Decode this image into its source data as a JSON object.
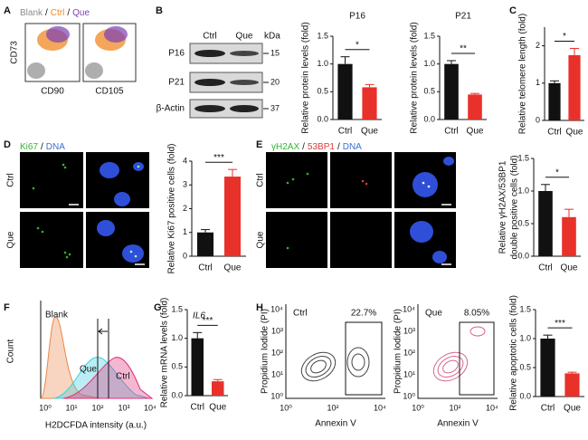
{
  "chart_data": [
    {
      "type": "bar",
      "title": "P16",
      "ylabel": "Relative protein levels (fold)",
      "categories": [
        "Ctrl",
        "Que"
      ],
      "values": [
        1.0,
        0.58
      ],
      "errors": [
        0.13,
        0.05
      ],
      "colors": [
        "#111111",
        "#e8312a"
      ],
      "ylim": [
        0,
        1.5
      ],
      "yticks": [
        {
          "value": 0,
          "label": "0.0"
        },
        {
          "value": 0.5,
          "label": "0.5"
        },
        {
          "value": 1,
          "label": "1.0"
        },
        {
          "value": 1.5,
          "label": "1.5"
        }
      ],
      "significance": "*"
    },
    {
      "type": "bar",
      "title": "P21",
      "ylabel": "Relative protein levels (fold)",
      "categories": [
        "Ctrl",
        "Que"
      ],
      "values": [
        1.0,
        0.45
      ],
      "errors": [
        0.06,
        0.02
      ],
      "colors": [
        "#111111",
        "#e8312a"
      ],
      "ylim": [
        0,
        1.5
      ],
      "yticks": [
        {
          "value": 0,
          "label": "0.0"
        },
        {
          "value": 0.5,
          "label": "0.5"
        },
        {
          "value": 1,
          "label": "1.0"
        },
        {
          "value": 1.5,
          "label": "1.5"
        }
      ],
      "significance": "**"
    },
    {
      "type": "bar",
      "ylabel": "Relative telomere length (fold)",
      "categories": [
        "Ctrl",
        "Que"
      ],
      "values": [
        1.0,
        1.75
      ],
      "errors": [
        0.06,
        0.18
      ],
      "colors": [
        "#111111",
        "#e8312a"
      ],
      "ylim": [
        0,
        2.5
      ],
      "yticks": [
        0,
        1,
        2
      ],
      "significance": "*"
    },
    {
      "type": "bar",
      "ylabel": "Relative Ki67 positive cells (fold)",
      "categories": [
        "Ctrl",
        "Que"
      ],
      "values": [
        1.0,
        3.35
      ],
      "errors": [
        0.12,
        0.3
      ],
      "colors": [
        "#111111",
        "#e8312a"
      ],
      "ylim": [
        0,
        4
      ],
      "yticks": [
        0,
        1,
        2,
        3,
        4
      ],
      "significance": "***"
    },
    {
      "type": "bar",
      "ylabel": [
        "Relative γH2AX/53BP1",
        "double positive cells (fold)"
      ],
      "categories": [
        "Ctrl",
        "Que"
      ],
      "values": [
        1.0,
        0.6
      ],
      "errors": [
        0.1,
        0.12
      ],
      "colors": [
        "#111111",
        "#e8312a"
      ],
      "ylim": [
        0,
        1.5
      ],
      "yticks": [
        {
          "value": 0,
          "label": "0.0"
        },
        {
          "value": 0.5,
          "label": "0.5"
        },
        {
          "value": 1,
          "label": "1.0"
        },
        {
          "value": 1.5,
          "label": "1.5"
        }
      ],
      "significance": "*"
    },
    {
      "type": "bar",
      "title": "IL6",
      "ylabel": "Relative mRNA levels (fold)",
      "categories": [
        "Ctrl",
        "Que"
      ],
      "values": [
        1.0,
        0.25
      ],
      "errors": [
        0.1,
        0.03
      ],
      "colors": [
        "#111111",
        "#e8312a"
      ],
      "ylim": [
        0,
        1.5
      ],
      "yticks": [
        {
          "value": 0,
          "label": "0.0"
        },
        {
          "value": 0.5,
          "label": "0.5"
        },
        {
          "value": 1,
          "label": "1.0"
        },
        {
          "value": 1.5,
          "label": "1.5"
        }
      ],
      "significance": "***"
    },
    {
      "type": "bar",
      "ylabel": "Relative apoptotic cells (fold)",
      "categories": [
        "Ctrl",
        "Que"
      ],
      "values": [
        1.0,
        0.4
      ],
      "errors": [
        0.06,
        0.02
      ],
      "colors": [
        "#111111",
        "#e8312a"
      ],
      "ylim": [
        0,
        1.5
      ],
      "yticks": [
        {
          "value": 0,
          "label": "0.0"
        },
        {
          "value": 0.5,
          "label": "0.5"
        },
        {
          "value": 1,
          "label": "1.0"
        },
        {
          "value": 1.5,
          "label": "1.5"
        }
      ],
      "significance": "***"
    }
  ],
  "panels": {
    "letters": [
      "A",
      "B",
      "C",
      "D",
      "E",
      "F",
      "G",
      "H"
    ],
    "separator": "/",
    "A": {
      "legend": [
        {
          "text": "Blank",
          "color": "#8c8c8c"
        },
        {
          "text": "Ctrl",
          "color": "#f08a24"
        },
        {
          "text": "Que",
          "color": "#7b3fb5"
        }
      ],
      "y_label": "CD73",
      "x_labels": [
        "CD90",
        "CD105"
      ]
    },
    "B": {
      "lanes": [
        "Ctrl",
        "Que"
      ],
      "unit": "kDa",
      "bands": [
        {
          "name": "P16",
          "kda": "15"
        },
        {
          "name": "P21",
          "kda": "20"
        },
        {
          "name": "β-Actin",
          "kda": "37"
        }
      ]
    },
    "D": {
      "stains": [
        {
          "text": "Ki67",
          "color": "#2db82d"
        },
        {
          "text": "DNA",
          "color": "#3a6fd8"
        }
      ],
      "rows": [
        "Ctrl",
        "Que"
      ]
    },
    "E": {
      "stains": [
        {
          "text": "γH2AX",
          "color": "#2db82d"
        },
        {
          "text": "53BP1",
          "color": "#d83a3a"
        },
        {
          "text": "DNA",
          "color": "#3a6fd8"
        }
      ],
      "rows": [
        "Ctrl",
        "Que"
      ]
    },
    "F": {
      "y_label": "Count",
      "x_label": "H2DCFDA intensity (a.u.)",
      "x_ticks": [
        "10⁰",
        "10¹",
        "10²",
        "10³",
        "10⁴"
      ],
      "curves": [
        {
          "name": "Blank",
          "color": "#e8874a"
        },
        {
          "name": "Que",
          "color": "#3ccfe0"
        },
        {
          "name": "Ctrl",
          "color": "#e0307a"
        }
      ]
    },
    "H": {
      "plots": [
        {
          "name": "Ctrl",
          "gate": "22.7%"
        },
        {
          "name": "Que",
          "gate": "8.05%"
        }
      ],
      "y_label": "Propidium Iodide (PI)",
      "x_label": "Annexin V",
      "y_ticks": [
        "10⁰",
        "10¹",
        "10²",
        "10³",
        "10⁴"
      ],
      "x_ticks": [
        "10⁰",
        "10²",
        "10⁴"
      ]
    }
  }
}
